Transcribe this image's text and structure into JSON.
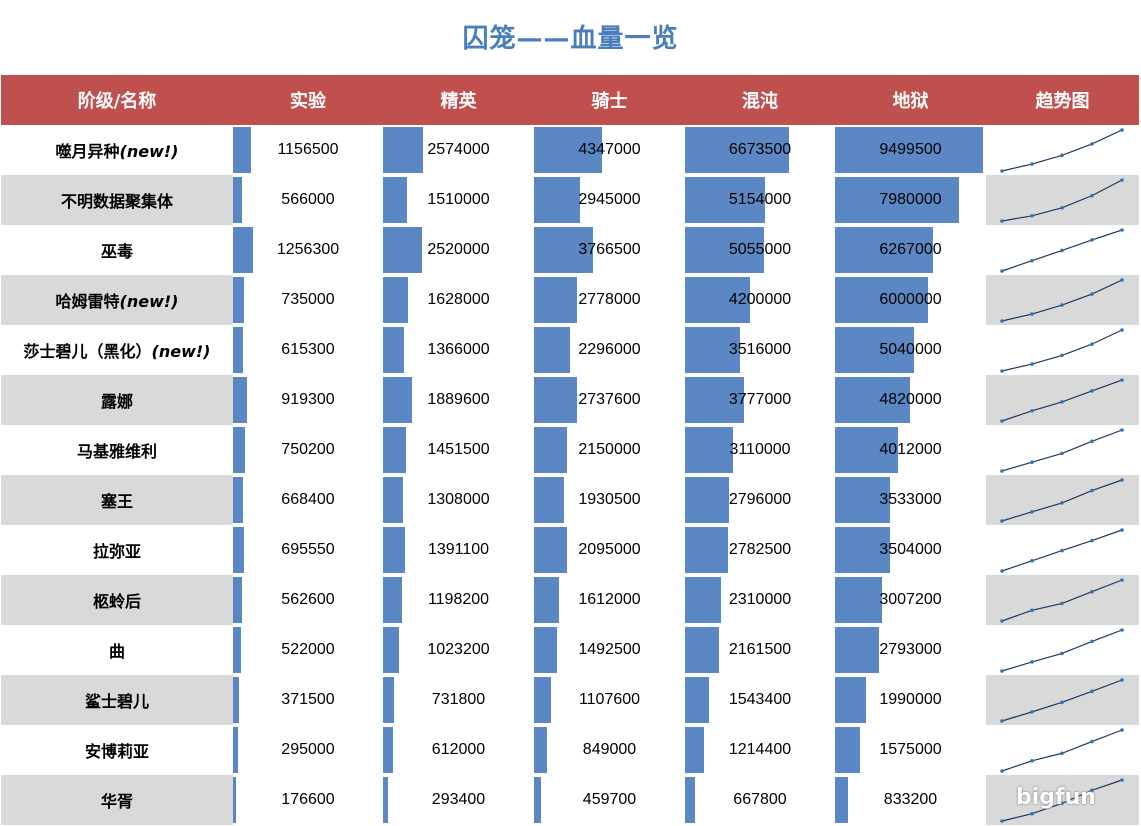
{
  "title": "囚笼——血量一览",
  "headers": [
    "阶级/名称",
    "实验",
    "精英",
    "骑士",
    "混沌",
    "地狱",
    "趋势图"
  ],
  "colors": {
    "header_bg": "#c0504d",
    "bar": "#5b87c5",
    "alt_row": "#d9d9d9",
    "title": "#4a7ebb",
    "spark_line": "#1f3864",
    "spark_dot": "#2e75b6"
  },
  "rows": [
    {
      "name": "噬月异种",
      "tag": "(new!)",
      "values": [
        1156500,
        2574000,
        4347000,
        6673500,
        9499500
      ]
    },
    {
      "name": "不明数据聚集体",
      "tag": "",
      "values": [
        566000,
        1510000,
        2945000,
        5154000,
        7980000
      ]
    },
    {
      "name": "巫毒",
      "tag": "",
      "values": [
        1256300,
        2520000,
        3766500,
        5055000,
        6267000
      ]
    },
    {
      "name": "哈姆雷特",
      "tag": "(new!)",
      "values": [
        735000,
        1628000,
        2778000,
        4200000,
        6000000
      ]
    },
    {
      "name": "莎士碧儿（黑化）",
      "tag": "(new!)",
      "values": [
        615300,
        1366000,
        2296000,
        3516000,
        5040000
      ]
    },
    {
      "name": "露娜",
      "tag": "",
      "values": [
        919300,
        1889600,
        2737600,
        3777000,
        4820000
      ]
    },
    {
      "name": "马基雅维利",
      "tag": "",
      "values": [
        750200,
        1451500,
        2150000,
        3110000,
        4012000
      ]
    },
    {
      "name": "塞王",
      "tag": "",
      "values": [
        668400,
        1308000,
        1930500,
        2796000,
        3533000
      ]
    },
    {
      "name": "拉弥亚",
      "tag": "",
      "values": [
        695550,
        1391100,
        2095000,
        2782500,
        3504000
      ]
    },
    {
      "name": "柩蛉后",
      "tag": "",
      "values": [
        562600,
        1198200,
        1612000,
        2310000,
        3007200
      ]
    },
    {
      "name": "曲",
      "tag": "",
      "values": [
        522000,
        1023200,
        1492500,
        2161500,
        2793000
      ]
    },
    {
      "name": "鲨士碧儿",
      "tag": "",
      "values": [
        371500,
        731800,
        1107600,
        1543400,
        1990000
      ]
    },
    {
      "name": "安博莉亚",
      "tag": "",
      "values": [
        295000,
        612000,
        849000,
        1214400,
        1575000
      ]
    },
    {
      "name": "华胥",
      "tag": "",
      "values": [
        176600,
        293400,
        459700,
        667800,
        833200
      ]
    }
  ],
  "bar_max": 9499500,
  "watermark": "bigfun"
}
